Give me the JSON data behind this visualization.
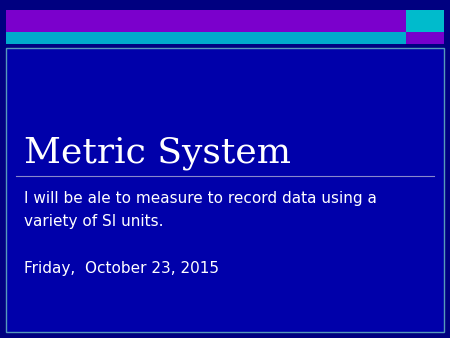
{
  "bg_color": "#0000AA",
  "outer_bg": "#000080",
  "top_bar_color": "#7B00CC",
  "teal_bar_color": "#00AACC",
  "teal_square_color": "#00BBCC",
  "purple_square_color": "#7700CC",
  "title": "Metric System",
  "title_color": "#FFFFFF",
  "title_fontsize": 26,
  "body_text": "I will be ale to measure to record data using a\nvariety of SI units.",
  "body_color": "#FFFFFF",
  "body_fontsize": 11,
  "date_text": "Friday,  October 23, 2015",
  "date_color": "#FFFFFF",
  "date_fontsize": 11,
  "line_color": "#8888CC",
  "border_color": "#5599BB",
  "fig_width": 4.5,
  "fig_height": 3.38,
  "dpi": 100
}
